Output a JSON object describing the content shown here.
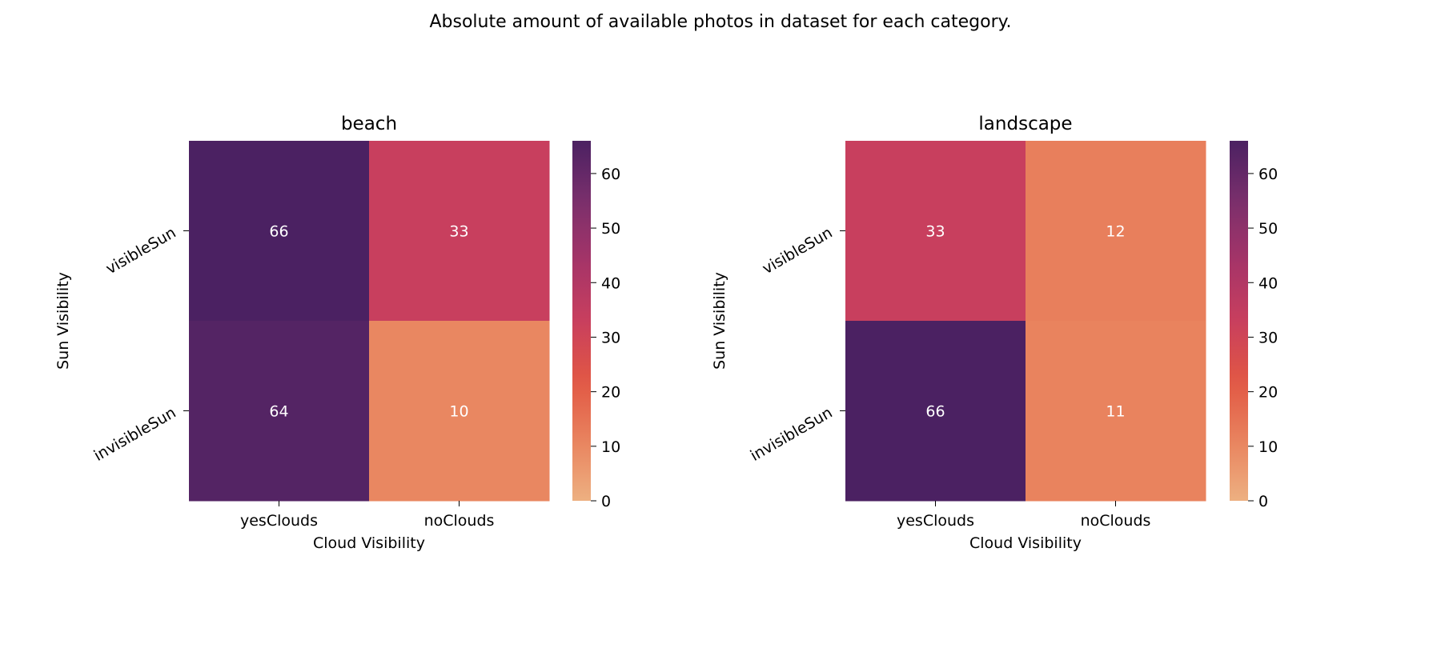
{
  "figure": {
    "suptitle": "Absolute amount of available photos in dataset for each category."
  },
  "chart_data": [
    {
      "type": "heatmap",
      "title": "beach",
      "xlabel": "Cloud Visibility",
      "ylabel": "Sun Visibility",
      "x_categories": [
        "yesClouds",
        "noClouds"
      ],
      "y_categories": [
        "visibleSun",
        "invisibleSun"
      ],
      "values": [
        [
          66,
          33
        ],
        [
          64,
          10
        ]
      ],
      "colorbar": {
        "min": 0,
        "max": 66,
        "ticks": [
          0,
          10,
          20,
          30,
          40,
          50,
          60
        ]
      },
      "colormap": "flare"
    },
    {
      "type": "heatmap",
      "title": "landscape",
      "xlabel": "Cloud Visibility",
      "ylabel": "Sun Visibility",
      "x_categories": [
        "yesClouds",
        "noClouds"
      ],
      "y_categories": [
        "visibleSun",
        "invisibleSun"
      ],
      "values": [
        [
          33,
          12
        ],
        [
          66,
          11
        ]
      ],
      "colorbar": {
        "min": 0,
        "max": 66,
        "ticks": [
          0,
          10,
          20,
          30,
          40,
          50,
          60
        ]
      },
      "colormap": "flare"
    }
  ],
  "colormap_stops": [
    "#edb081",
    "#e9835e",
    "#e15744",
    "#c83f5e",
    "#a53468",
    "#7a2f6c",
    "#4b2162"
  ]
}
